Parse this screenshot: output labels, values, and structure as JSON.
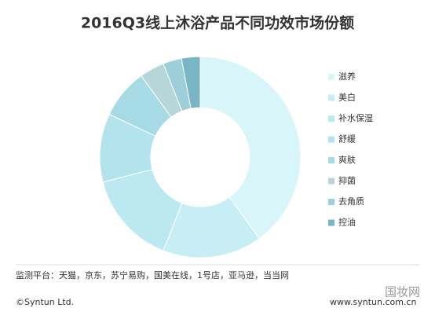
{
  "chart_data": {
    "type": "donut",
    "title": "2016Q3线上沐浴产品不同功效市场份额",
    "categories": [
      "滋养",
      "美白",
      "补水保湿",
      "舒缓",
      "爽肤",
      "抑菌",
      "去角质",
      "控油"
    ],
    "values": [
      40,
      16,
      15,
      11,
      8,
      4,
      3,
      3
    ],
    "colors": [
      "#d8f6f9",
      "#c8eef5",
      "#bce8f1",
      "#b3e3ec",
      "#a6dbe6",
      "#b7d6d9",
      "#9ccfda",
      "#7ab5c6"
    ],
    "legend": "right",
    "source": "监测平台：天猫，京东，苏宁易购，国美在线，1号店，亚马逊，当当网",
    "copyright": "©Syntun Ltd.",
    "website": "www.syntun.com.cn",
    "watermark": "国妆网"
  }
}
